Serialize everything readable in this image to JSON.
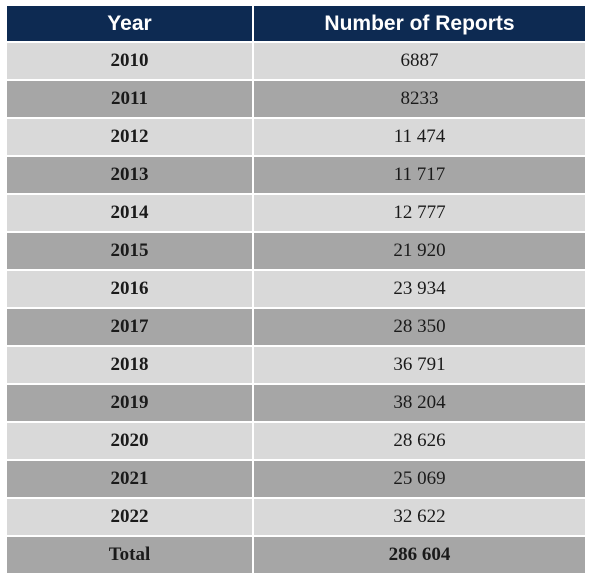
{
  "table": {
    "headers": [
      "Year",
      "Number of Reports"
    ],
    "rows": [
      {
        "year": "2010",
        "reports": "6887"
      },
      {
        "year": "2011",
        "reports": "8233"
      },
      {
        "year": "2012",
        "reports": "11 474"
      },
      {
        "year": "2013",
        "reports": "11 717"
      },
      {
        "year": "2014",
        "reports": "12 777"
      },
      {
        "year": "2015",
        "reports": "21 920"
      },
      {
        "year": "2016",
        "reports": "23 934"
      },
      {
        "year": "2017",
        "reports": "28 350"
      },
      {
        "year": "2018",
        "reports": "36 791"
      },
      {
        "year": "2019",
        "reports": "38 204"
      },
      {
        "year": "2020",
        "reports": "28 626"
      },
      {
        "year": "2021",
        "reports": "25 069"
      },
      {
        "year": "2022",
        "reports": "32 622"
      }
    ],
    "total": {
      "label": "Total",
      "reports": "286 604"
    }
  },
  "colors": {
    "header_bg": "#0d2a52",
    "row_light": "#d9d9d9",
    "row_dark": "#a6a6a6"
  }
}
